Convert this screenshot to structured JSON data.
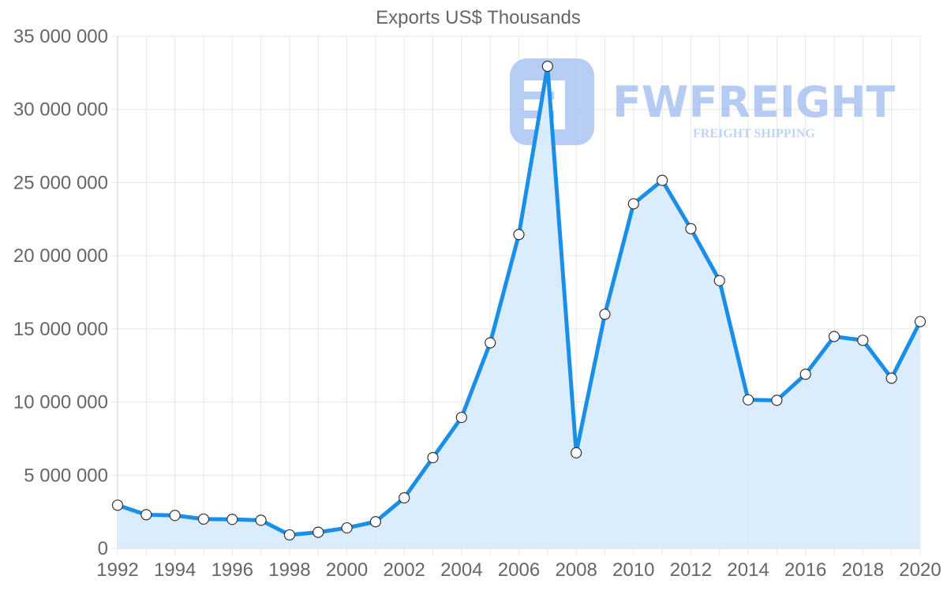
{
  "colors": {
    "line": "#1a8fe8",
    "fill": "#d9ecfc",
    "watermark": "#a9c3f1"
  },
  "watermark": {
    "logo_icon": "fw-logo-icon",
    "name": "FWFREIGHT",
    "tagline": "FREIGHT SHIPPING"
  },
  "chart_data": {
    "type": "area",
    "title": "Exports US$ Thousands",
    "xlabel": "",
    "ylabel": "",
    "x": [
      1992,
      1993,
      1994,
      1995,
      1996,
      1997,
      1998,
      1999,
      2000,
      2001,
      2002,
      2003,
      2004,
      2005,
      2006,
      2007,
      2008,
      2009,
      2010,
      2011,
      2012,
      2013,
      2014,
      2015,
      2016,
      2017,
      2018,
      2019,
      2020
    ],
    "series": [
      {
        "name": "Exports US$ Thousands",
        "values": [
          2950000,
          2300000,
          2250000,
          2000000,
          1980000,
          1920000,
          920000,
          1100000,
          1400000,
          1820000,
          3450000,
          6200000,
          8950000,
          14050000,
          21450000,
          32950000,
          6530000,
          16000000,
          23550000,
          25150000,
          21850000,
          18300000,
          10150000,
          10120000,
          11900000,
          14480000,
          14220000,
          11630000,
          15500000
        ]
      }
    ],
    "xlim": [
      1992,
      2020
    ],
    "ylim": [
      0,
      35000000
    ],
    "x_ticks": [
      "1992",
      "1994",
      "1996",
      "1998",
      "2000",
      "2002",
      "2004",
      "2006",
      "2008",
      "2010",
      "2012",
      "2014",
      "2016",
      "2018",
      "2020"
    ],
    "y_ticks": [
      "0",
      "5 000 000",
      "10 000 000",
      "15 000 000",
      "20 000 000",
      "25 000 000",
      "30 000 000",
      "35 000 000"
    ],
    "grid": true,
    "legend": "none"
  }
}
